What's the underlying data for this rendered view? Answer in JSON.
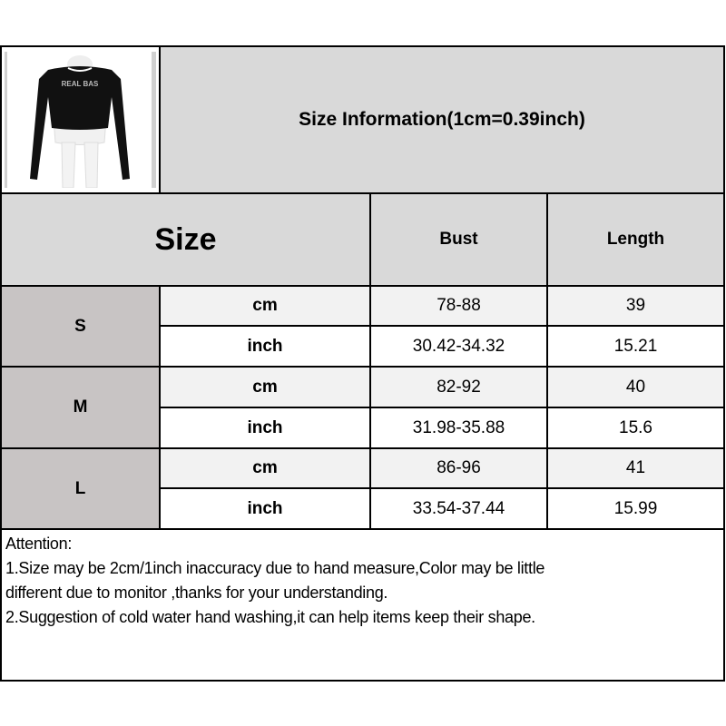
{
  "header": {
    "title": "Size Information(1cm=0.39inch)",
    "product_image": "black cropped long-sleeve top on mannequin",
    "logo_text": "REAL BAS"
  },
  "columns": {
    "size": "Size",
    "bust": "Bust",
    "length": "Length"
  },
  "rows": [
    {
      "size": "S",
      "cm": {
        "unit": "cm",
        "bust": "78-88",
        "length": "39"
      },
      "inch": {
        "unit": "inch",
        "bust": "30.42-34.32",
        "length": "15.21"
      }
    },
    {
      "size": "M",
      "cm": {
        "unit": "cm",
        "bust": "82-92",
        "length": "40"
      },
      "inch": {
        "unit": "inch",
        "bust": "31.98-35.88",
        "length": "15.6"
      }
    },
    {
      "size": "L",
      "cm": {
        "unit": "cm",
        "bust": "86-96",
        "length": "41"
      },
      "inch": {
        "unit": "inch",
        "bust": "33.54-37.44",
        "length": "15.99"
      }
    }
  ],
  "attention": {
    "heading": "Attention:",
    "line1": "1.Size may be 2cm/1inch inaccuracy due to hand measure,Color may be little",
    "line2": "different due to monitor ,thanks for your understanding.",
    "line3": "2.Suggestion of cold water hand washing,it can help items keep their shape."
  },
  "colors": {
    "header_bg": "#d9d9d9",
    "size_bg": "#c8c4c4",
    "cm_row_bg": "#f2f2f2",
    "inch_row_bg": "#ffffff"
  }
}
